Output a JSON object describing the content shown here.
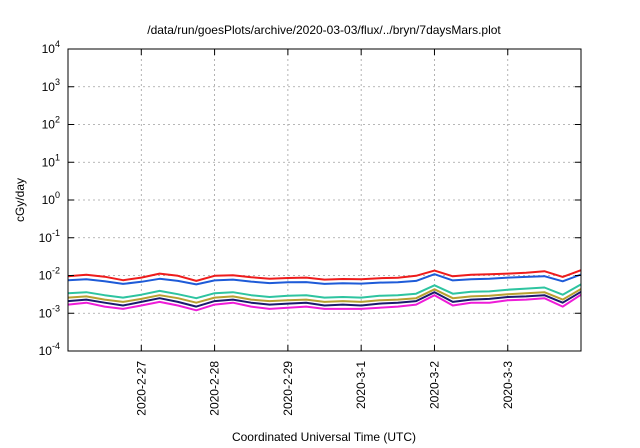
{
  "chart_data": {
    "type": "line",
    "title": "/data/run/goesPlots/archive/2020-03-03/flux/../bryn/7daysMars.plot",
    "xlabel": "Coordinated Universal Time (UTC)",
    "ylabel": "cGy/day",
    "yscale": "log",
    "ylim": [
      0.0001,
      10000
    ],
    "xlim": [
      "2020-02-26T00:00",
      "2020-03-03T23:59"
    ],
    "grid": true,
    "x_ticks": [
      "2020-2-27",
      "2020-2-28",
      "2020-2-29",
      "2020-3-1",
      "2020-3-2",
      "2020-3-3"
    ],
    "y_ticks": [
      {
        "value": 0.0001,
        "base": "10",
        "exp": "-4"
      },
      {
        "value": 0.001,
        "base": "10",
        "exp": "-3"
      },
      {
        "value": 0.01,
        "base": "10",
        "exp": "-2"
      },
      {
        "value": 0.1,
        "base": "10",
        "exp": "-1"
      },
      {
        "value": 1,
        "base": "10",
        "exp": "0"
      },
      {
        "value": 10,
        "base": "10",
        "exp": "1"
      },
      {
        "value": 100,
        "base": "10",
        "exp": "2"
      },
      {
        "value": 1000,
        "base": "10",
        "exp": "3"
      },
      {
        "value": 10000,
        "base": "10",
        "exp": "4"
      }
    ],
    "series": [
      {
        "color": "#ee1c1c",
        "points": [
          [
            "2020-02-26T00:00",
            0.0095
          ],
          [
            "2020-02-26T06:00",
            0.0105
          ],
          [
            "2020-02-26T12:00",
            0.0093
          ],
          [
            "2020-02-26T18:00",
            0.0075
          ],
          [
            "2020-02-27T00:00",
            0.0088
          ],
          [
            "2020-02-27T06:00",
            0.0112
          ],
          [
            "2020-02-27T12:00",
            0.0098
          ],
          [
            "2020-02-27T18:00",
            0.0072
          ],
          [
            "2020-02-28T00:00",
            0.0098
          ],
          [
            "2020-02-28T06:00",
            0.0102
          ],
          [
            "2020-02-28T12:00",
            0.009
          ],
          [
            "2020-02-28T18:00",
            0.0082
          ],
          [
            "2020-02-29T00:00",
            0.0086
          ],
          [
            "2020-02-29T06:00",
            0.0088
          ],
          [
            "2020-02-29T12:00",
            0.0078
          ],
          [
            "2020-02-29T18:00",
            0.0081
          ],
          [
            "2020-03-01T00:00",
            0.008
          ],
          [
            "2020-03-01T06:00",
            0.0085
          ],
          [
            "2020-03-01T12:00",
            0.0087
          ],
          [
            "2020-03-01T18:00",
            0.0098
          ],
          [
            "2020-03-02T00:00",
            0.0135
          ],
          [
            "2020-03-02T06:00",
            0.0095
          ],
          [
            "2020-03-02T12:00",
            0.0105
          ],
          [
            "2020-03-02T18:00",
            0.0108
          ],
          [
            "2020-03-03T00:00",
            0.0112
          ],
          [
            "2020-03-03T06:00",
            0.0118
          ],
          [
            "2020-03-03T12:00",
            0.013
          ],
          [
            "2020-03-03T18:00",
            0.0092
          ],
          [
            "2020-03-03T23:59",
            0.0138
          ]
        ]
      },
      {
        "color": "#1e5bd8",
        "points": [
          [
            "2020-02-26T00:00",
            0.0075
          ],
          [
            "2020-02-26T06:00",
            0.008
          ],
          [
            "2020-02-26T12:00",
            0.007
          ],
          [
            "2020-02-26T18:00",
            0.006
          ],
          [
            "2020-02-27T00:00",
            0.0068
          ],
          [
            "2020-02-27T06:00",
            0.0082
          ],
          [
            "2020-02-27T12:00",
            0.0072
          ],
          [
            "2020-02-27T18:00",
            0.0058
          ],
          [
            "2020-02-28T00:00",
            0.0074
          ],
          [
            "2020-02-28T06:00",
            0.0078
          ],
          [
            "2020-02-28T12:00",
            0.0069
          ],
          [
            "2020-02-28T18:00",
            0.0063
          ],
          [
            "2020-02-29T00:00",
            0.0066
          ],
          [
            "2020-02-29T06:00",
            0.0067
          ],
          [
            "2020-02-29T12:00",
            0.006
          ],
          [
            "2020-02-29T18:00",
            0.0062
          ],
          [
            "2020-03-01T00:00",
            0.0061
          ],
          [
            "2020-03-01T06:00",
            0.0065
          ],
          [
            "2020-03-01T12:00",
            0.0066
          ],
          [
            "2020-03-01T18:00",
            0.0072
          ],
          [
            "2020-03-02T00:00",
            0.0108
          ],
          [
            "2020-03-02T06:00",
            0.0074
          ],
          [
            "2020-03-02T12:00",
            0.008
          ],
          [
            "2020-03-02T18:00",
            0.0082
          ],
          [
            "2020-03-03T00:00",
            0.0088
          ],
          [
            "2020-03-03T06:00",
            0.0092
          ],
          [
            "2020-03-03T12:00",
            0.0096
          ],
          [
            "2020-03-03T18:00",
            0.007
          ],
          [
            "2020-03-03T23:59",
            0.0106
          ]
        ]
      },
      {
        "color": "#2ec4a0",
        "points": [
          [
            "2020-02-26T00:00",
            0.0034
          ],
          [
            "2020-02-26T06:00",
            0.0036
          ],
          [
            "2020-02-26T12:00",
            0.003
          ],
          [
            "2020-02-26T18:00",
            0.0026
          ],
          [
            "2020-02-27T00:00",
            0.0031
          ],
          [
            "2020-02-27T06:00",
            0.0039
          ],
          [
            "2020-02-27T12:00",
            0.0032
          ],
          [
            "2020-02-27T18:00",
            0.0025
          ],
          [
            "2020-02-28T00:00",
            0.0034
          ],
          [
            "2020-02-28T06:00",
            0.0036
          ],
          [
            "2020-02-28T12:00",
            0.003
          ],
          [
            "2020-02-28T18:00",
            0.0027
          ],
          [
            "2020-02-29T00:00",
            0.0029
          ],
          [
            "2020-02-29T06:00",
            0.003
          ],
          [
            "2020-02-29T12:00",
            0.0026
          ],
          [
            "2020-02-29T18:00",
            0.0027
          ],
          [
            "2020-03-01T00:00",
            0.0026
          ],
          [
            "2020-03-01T06:00",
            0.0029
          ],
          [
            "2020-03-01T12:00",
            0.003
          ],
          [
            "2020-03-01T18:00",
            0.0033
          ],
          [
            "2020-03-02T00:00",
            0.0055
          ],
          [
            "2020-03-02T06:00",
            0.0033
          ],
          [
            "2020-03-02T12:00",
            0.0037
          ],
          [
            "2020-03-02T18:00",
            0.0038
          ],
          [
            "2020-03-03T00:00",
            0.0042
          ],
          [
            "2020-03-03T06:00",
            0.0045
          ],
          [
            "2020-03-03T12:00",
            0.0048
          ],
          [
            "2020-03-03T18:00",
            0.0031
          ],
          [
            "2020-03-03T23:59",
            0.0058
          ]
        ]
      },
      {
        "color": "#b8a030",
        "points": [
          [
            "2020-02-26T00:00",
            0.0026
          ],
          [
            "2020-02-26T06:00",
            0.0028
          ],
          [
            "2020-02-26T12:00",
            0.0023
          ],
          [
            "2020-02-26T18:00",
            0.002
          ],
          [
            "2020-02-27T00:00",
            0.0024
          ],
          [
            "2020-02-27T06:00",
            0.003
          ],
          [
            "2020-02-27T12:00",
            0.0025
          ],
          [
            "2020-02-27T18:00",
            0.0019
          ],
          [
            "2020-02-28T00:00",
            0.0026
          ],
          [
            "2020-02-28T06:00",
            0.0028
          ],
          [
            "2020-02-28T12:00",
            0.0023
          ],
          [
            "2020-02-28T18:00",
            0.0021
          ],
          [
            "2020-02-29T00:00",
            0.0022
          ],
          [
            "2020-02-29T06:00",
            0.0023
          ],
          [
            "2020-02-29T12:00",
            0.002
          ],
          [
            "2020-02-29T18:00",
            0.0021
          ],
          [
            "2020-03-01T00:00",
            0.002
          ],
          [
            "2020-03-01T06:00",
            0.0022
          ],
          [
            "2020-03-01T12:00",
            0.0023
          ],
          [
            "2020-03-01T18:00",
            0.0025
          ],
          [
            "2020-03-02T00:00",
            0.0043
          ],
          [
            "2020-03-02T06:00",
            0.0025
          ],
          [
            "2020-03-02T12:00",
            0.0028
          ],
          [
            "2020-03-02T18:00",
            0.0029
          ],
          [
            "2020-03-03T00:00",
            0.0032
          ],
          [
            "2020-03-03T06:00",
            0.0034
          ],
          [
            "2020-03-03T12:00",
            0.0036
          ],
          [
            "2020-03-03T18:00",
            0.0023
          ],
          [
            "2020-03-03T23:59",
            0.0044
          ]
        ]
      },
      {
        "color": "#1a1a6e",
        "points": [
          [
            "2020-02-26T00:00",
            0.0021
          ],
          [
            "2020-02-26T06:00",
            0.0023
          ],
          [
            "2020-02-26T12:00",
            0.0019
          ],
          [
            "2020-02-26T18:00",
            0.0016
          ],
          [
            "2020-02-27T00:00",
            0.002
          ],
          [
            "2020-02-27T06:00",
            0.0025
          ],
          [
            "2020-02-27T12:00",
            0.002
          ],
          [
            "2020-02-27T18:00",
            0.0015
          ],
          [
            "2020-02-28T00:00",
            0.0021
          ],
          [
            "2020-02-28T06:00",
            0.0023
          ],
          [
            "2020-02-28T12:00",
            0.0019
          ],
          [
            "2020-02-28T18:00",
            0.0017
          ],
          [
            "2020-02-29T00:00",
            0.0018
          ],
          [
            "2020-02-29T06:00",
            0.0019
          ],
          [
            "2020-02-29T12:00",
            0.0016
          ],
          [
            "2020-02-29T18:00",
            0.0017
          ],
          [
            "2020-03-01T00:00",
            0.0016
          ],
          [
            "2020-03-01T06:00",
            0.0018
          ],
          [
            "2020-03-01T12:00",
            0.0019
          ],
          [
            "2020-03-01T18:00",
            0.0021
          ],
          [
            "2020-03-02T00:00",
            0.0036
          ],
          [
            "2020-03-02T06:00",
            0.002
          ],
          [
            "2020-03-02T12:00",
            0.0023
          ],
          [
            "2020-03-02T18:00",
            0.0024
          ],
          [
            "2020-03-03T00:00",
            0.0027
          ],
          [
            "2020-03-03T06:00",
            0.0028
          ],
          [
            "2020-03-03T12:00",
            0.003
          ],
          [
            "2020-03-03T18:00",
            0.0019
          ],
          [
            "2020-03-03T23:59",
            0.0037
          ]
        ]
      },
      {
        "color": "#ee1cd8",
        "points": [
          [
            "2020-02-26T00:00",
            0.0017
          ],
          [
            "2020-02-26T06:00",
            0.0019
          ],
          [
            "2020-02-26T12:00",
            0.0015
          ],
          [
            "2020-02-26T18:00",
            0.0013
          ],
          [
            "2020-02-27T00:00",
            0.0016
          ],
          [
            "2020-02-27T06:00",
            0.002
          ],
          [
            "2020-02-27T12:00",
            0.0016
          ],
          [
            "2020-02-27T18:00",
            0.0012
          ],
          [
            "2020-02-28T00:00",
            0.0017
          ],
          [
            "2020-02-28T06:00",
            0.0019
          ],
          [
            "2020-02-28T12:00",
            0.0015
          ],
          [
            "2020-02-28T18:00",
            0.0013
          ],
          [
            "2020-02-29T00:00",
            0.0014
          ],
          [
            "2020-02-29T06:00",
            0.0015
          ],
          [
            "2020-02-29T12:00",
            0.0013
          ],
          [
            "2020-02-29T18:00",
            0.0013
          ],
          [
            "2020-03-01T00:00",
            0.0013
          ],
          [
            "2020-03-01T06:00",
            0.0014
          ],
          [
            "2020-03-01T12:00",
            0.0015
          ],
          [
            "2020-03-01T18:00",
            0.0017
          ],
          [
            "2020-03-02T00:00",
            0.003
          ],
          [
            "2020-03-02T06:00",
            0.0016
          ],
          [
            "2020-03-02T12:00",
            0.0019
          ],
          [
            "2020-03-02T18:00",
            0.0019
          ],
          [
            "2020-03-03T00:00",
            0.0022
          ],
          [
            "2020-03-03T06:00",
            0.0023
          ],
          [
            "2020-03-03T12:00",
            0.0025
          ],
          [
            "2020-03-03T18:00",
            0.0015
          ],
          [
            "2020-03-03T23:59",
            0.0031
          ]
        ]
      }
    ]
  }
}
